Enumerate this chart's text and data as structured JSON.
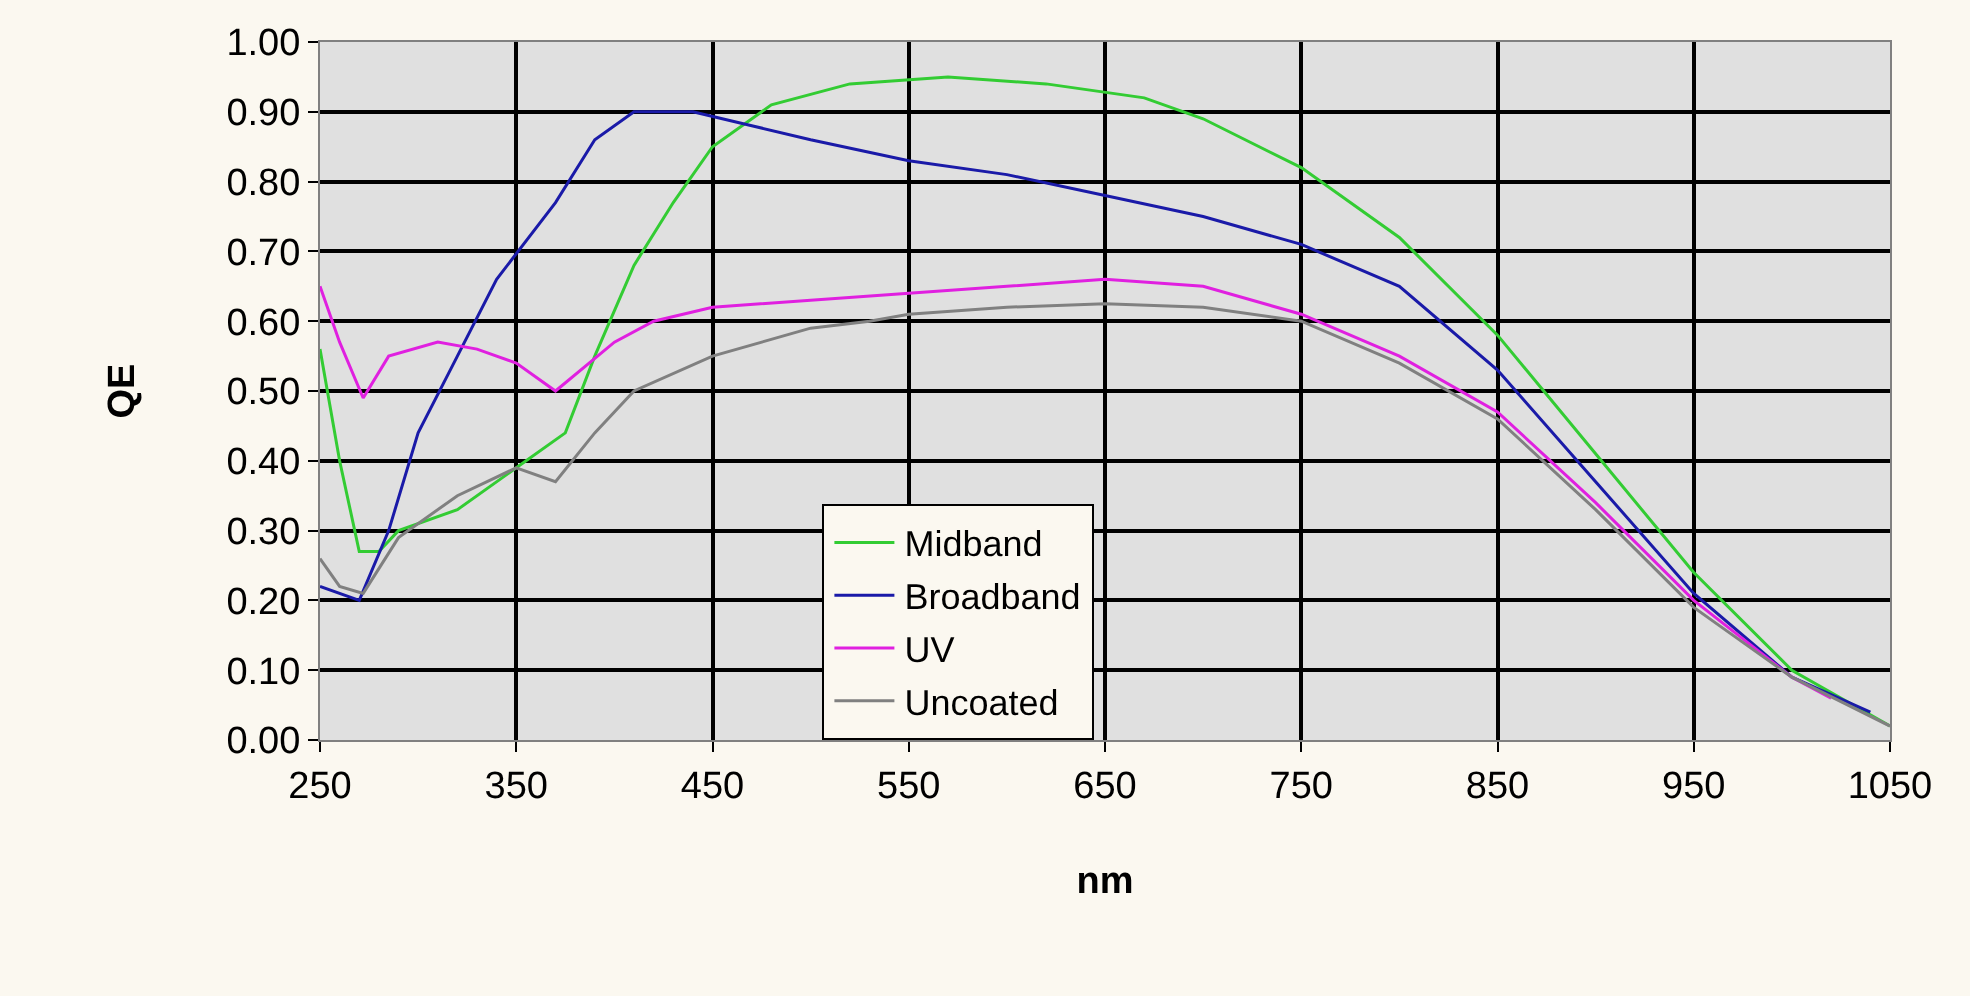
{
  "chart_data": {
    "type": "line",
    "xlabel": "nm",
    "ylabel": "QE",
    "xlim": [
      250,
      1050
    ],
    "xticks": [
      250,
      350,
      450,
      550,
      650,
      750,
      850,
      950,
      1050
    ],
    "ylim": [
      0,
      1
    ],
    "yticks": [
      {
        "value": 0,
        "label": "0.00"
      },
      {
        "value": 0.1,
        "label": "0.10"
      },
      {
        "value": 0.2,
        "label": "0.20"
      },
      {
        "value": 0.3,
        "label": "0.30"
      },
      {
        "value": 0.4,
        "label": "0.40"
      },
      {
        "value": 0.5,
        "label": "0.50"
      },
      {
        "value": 0.6,
        "label": "0.60"
      },
      {
        "value": 0.7,
        "label": "0.70"
      },
      {
        "value": 0.8,
        "label": "0.80"
      },
      {
        "value": 0.9,
        "label": "0.90"
      },
      {
        "value": 1,
        "label": "1.00"
      }
    ],
    "grid": true,
    "legend": "bottom",
    "marker": "none",
    "line_style": "solid",
    "series": [
      {
        "name": "Midband",
        "color": "#33cc33",
        "x": [
          250,
          260,
          270,
          280,
          290,
          320,
          350,
          375,
          390,
          410,
          430,
          450,
          480,
          520,
          570,
          620,
          670,
          700,
          750,
          800,
          850,
          900,
          950,
          1000,
          1050
        ],
        "values": [
          0.56,
          0.4,
          0.27,
          0.27,
          0.3,
          0.33,
          0.39,
          0.44,
          0.55,
          0.68,
          0.77,
          0.85,
          0.91,
          0.94,
          0.95,
          0.94,
          0.92,
          0.89,
          0.82,
          0.72,
          0.58,
          0.41,
          0.24,
          0.1,
          0.02
        ]
      },
      {
        "name": "Broadband",
        "color": "#1a1aa8",
        "x": [
          250,
          270,
          285,
          300,
          320,
          340,
          370,
          390,
          410,
          440,
          470,
          500,
          550,
          600,
          650,
          700,
          750,
          800,
          850,
          900,
          950,
          1000,
          1040
        ],
        "values": [
          0.22,
          0.2,
          0.3,
          0.44,
          0.55,
          0.66,
          0.77,
          0.86,
          0.9,
          0.9,
          0.88,
          0.86,
          0.83,
          0.81,
          0.78,
          0.75,
          0.71,
          0.65,
          0.53,
          0.37,
          0.21,
          0.09,
          0.04
        ]
      },
      {
        "name": "UV",
        "color": "#e020e0",
        "x": [
          250,
          260,
          272,
          285,
          310,
          330,
          350,
          370,
          400,
          420,
          450,
          500,
          550,
          600,
          650,
          700,
          750,
          800,
          850,
          900,
          950,
          1000,
          1020
        ],
        "values": [
          0.65,
          0.57,
          0.49,
          0.55,
          0.57,
          0.56,
          0.54,
          0.5,
          0.57,
          0.6,
          0.62,
          0.63,
          0.64,
          0.65,
          0.66,
          0.65,
          0.61,
          0.55,
          0.47,
          0.34,
          0.2,
          0.09,
          0.06
        ]
      },
      {
        "name": "Uncoated",
        "color": "#808080",
        "x": [
          250,
          260,
          272,
          290,
          320,
          350,
          370,
          390,
          410,
          450,
          500,
          530,
          550,
          600,
          650,
          700,
          750,
          800,
          850,
          900,
          950,
          1000,
          1050
        ],
        "values": [
          0.26,
          0.22,
          0.21,
          0.29,
          0.35,
          0.39,
          0.37,
          0.44,
          0.5,
          0.55,
          0.59,
          0.6,
          0.61,
          0.62,
          0.625,
          0.62,
          0.6,
          0.54,
          0.46,
          0.33,
          0.19,
          0.09,
          0.02
        ]
      }
    ]
  }
}
